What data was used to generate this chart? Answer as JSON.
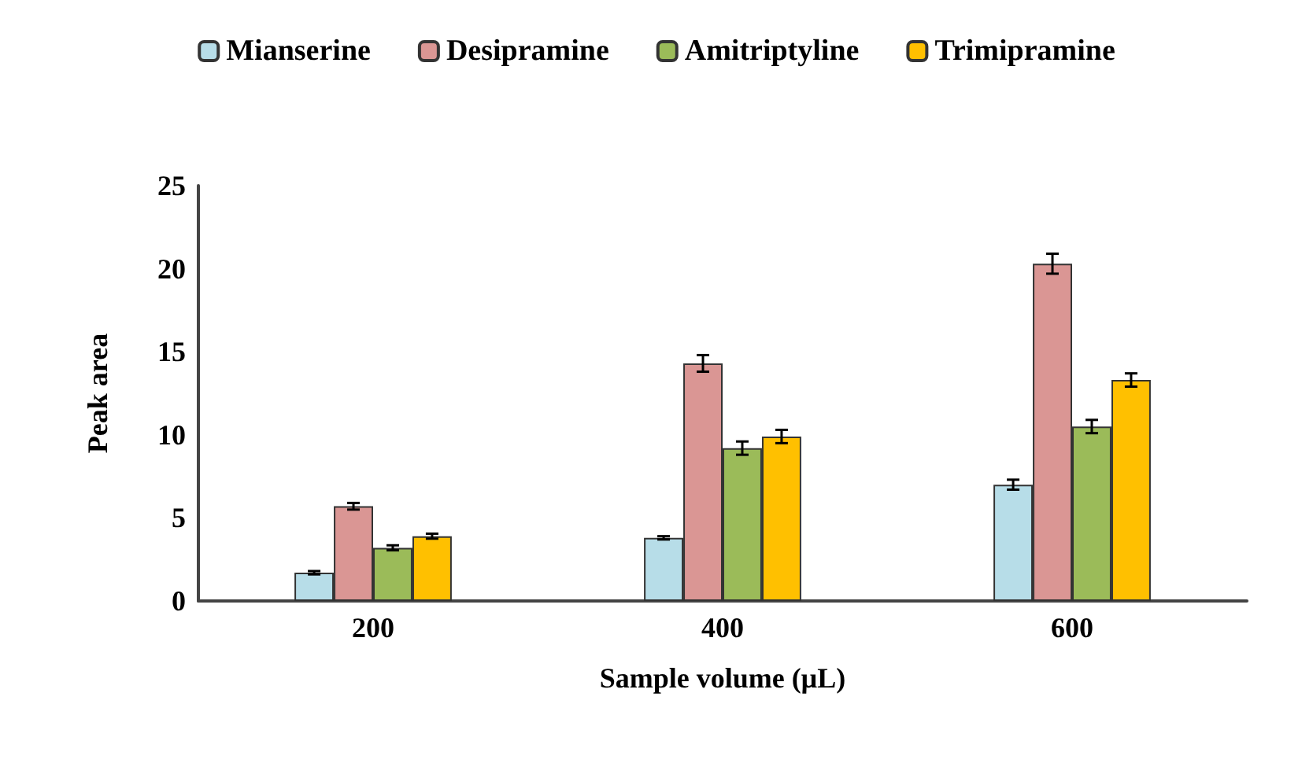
{
  "chart_data": {
    "type": "bar",
    "xlabel": "Sample volume (µL)",
    "ylabel": "Peak area",
    "categories": [
      "200",
      "400",
      "600"
    ],
    "series": [
      {
        "name": "Mianserine",
        "color": "#b7dde8",
        "values": [
          1.7,
          3.8,
          7.0
        ],
        "errors": [
          0.1,
          0.1,
          0.3
        ]
      },
      {
        "name": "Desipramine",
        "color": "#da9694",
        "values": [
          5.7,
          14.3,
          20.3
        ],
        "errors": [
          0.2,
          0.5,
          0.6
        ]
      },
      {
        "name": "Amitriptyline",
        "color": "#9bbb59",
        "values": [
          3.2,
          9.2,
          10.5
        ],
        "errors": [
          0.15,
          0.4,
          0.4
        ]
      },
      {
        "name": "Trimipramine",
        "color": "#ffc000",
        "values": [
          3.9,
          9.9,
          13.3
        ],
        "errors": [
          0.15,
          0.4,
          0.4
        ]
      }
    ],
    "ylim": [
      0,
      25
    ],
    "yticks": [
      0,
      5,
      10,
      15,
      20,
      25
    ],
    "grid": false,
    "legend": "top"
  }
}
